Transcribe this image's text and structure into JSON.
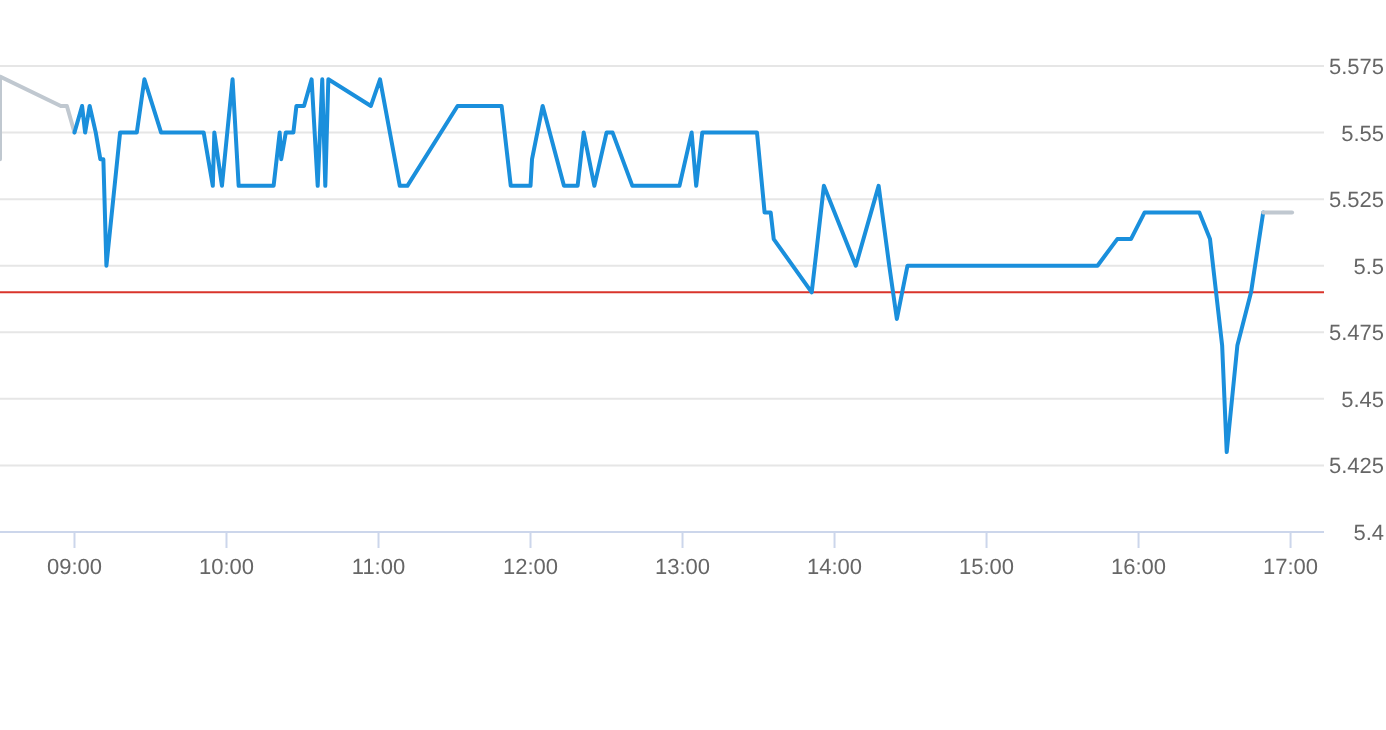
{
  "chart_data": {
    "type": "line",
    "xlim": [
      8.51,
      17.22
    ],
    "ylim": [
      5.4,
      5.575
    ],
    "xticks": [
      {
        "value": 9,
        "label": "09:00"
      },
      {
        "value": 10,
        "label": "10:00"
      },
      {
        "value": 11,
        "label": "11:00"
      },
      {
        "value": 12,
        "label": "12:00"
      },
      {
        "value": 13,
        "label": "13:00"
      },
      {
        "value": 14,
        "label": "14:00"
      },
      {
        "value": 15,
        "label": "15:00"
      },
      {
        "value": 16,
        "label": "16:00"
      },
      {
        "value": 17,
        "label": "17:00"
      }
    ],
    "yticks": [
      5.4,
      5.425,
      5.45,
      5.475,
      5.5,
      5.525,
      5.55,
      5.575
    ],
    "grid": "y",
    "marker": "none",
    "line_style": "solid",
    "ref_lines": [
      {
        "axis": "y",
        "value": 5.49,
        "color": "#d9342b"
      }
    ],
    "series": [
      {
        "color": "#c0c8d0",
        "x": [
          8.51,
          8.51,
          8.91,
          8.95,
          9.0
        ],
        "values": [
          5.54,
          5.571,
          5.56,
          5.56,
          5.55
        ]
      },
      {
        "color": "#1a8fdc",
        "x": [
          9.0,
          9.05,
          9.07,
          9.1,
          9.14,
          9.17,
          9.19,
          9.21,
          9.3,
          9.41,
          9.46,
          9.57,
          9.85,
          9.91,
          9.92,
          9.97,
          10.04,
          10.08,
          10.31,
          10.35,
          10.36,
          10.39,
          10.44,
          10.46,
          10.51,
          10.56,
          10.6,
          10.63,
          10.65,
          10.67,
          10.95,
          11.01,
          11.14,
          11.19,
          11.52,
          11.81,
          11.87,
          12.0,
          12.01,
          12.08,
          12.22,
          12.31,
          12.35,
          12.42,
          12.5,
          12.54,
          12.67,
          12.98,
          13.06,
          13.09,
          13.13,
          13.49,
          13.54,
          13.58,
          13.6,
          13.85,
          13.93,
          14.14,
          14.29,
          14.36,
          14.41,
          14.48,
          15.73,
          15.86,
          15.95,
          16.04,
          16.4,
          16.47,
          16.55,
          16.58,
          16.65,
          16.74,
          16.82
        ],
        "values": [
          5.55,
          5.56,
          5.55,
          5.56,
          5.55,
          5.54,
          5.54,
          5.5,
          5.55,
          5.55,
          5.57,
          5.55,
          5.55,
          5.53,
          5.55,
          5.53,
          5.57,
          5.53,
          5.53,
          5.55,
          5.54,
          5.55,
          5.55,
          5.56,
          5.56,
          5.57,
          5.53,
          5.57,
          5.53,
          5.57,
          5.56,
          5.57,
          5.53,
          5.53,
          5.56,
          5.56,
          5.53,
          5.53,
          5.54,
          5.56,
          5.53,
          5.53,
          5.55,
          5.53,
          5.55,
          5.55,
          5.53,
          5.53,
          5.55,
          5.53,
          5.55,
          5.55,
          5.52,
          5.52,
          5.51,
          5.49,
          5.53,
          5.5,
          5.53,
          5.5,
          5.48,
          5.5,
          5.5,
          5.51,
          5.51,
          5.52,
          5.52,
          5.51,
          5.47,
          5.43,
          5.47,
          5.49,
          5.52
        ]
      },
      {
        "color": "#c0c8d0",
        "x": [
          16.82,
          17.01
        ],
        "values": [
          5.52,
          5.52
        ]
      }
    ]
  }
}
